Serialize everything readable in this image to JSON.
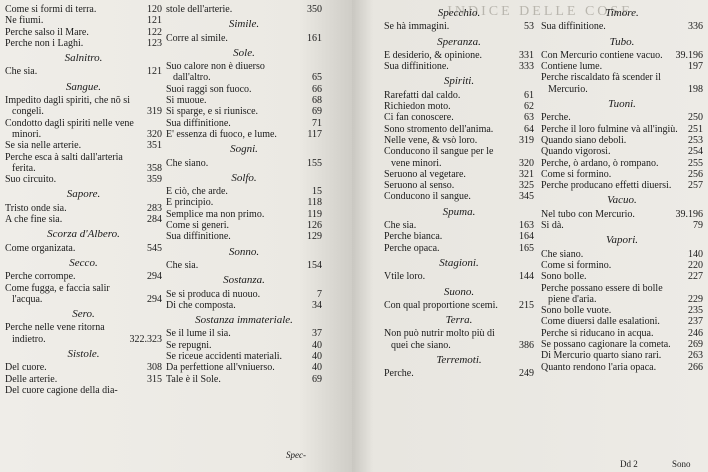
{
  "header": {
    "title": "INDICE DELLE COSE"
  },
  "columns": [
    {
      "items": [
        {
          "text": "Come si formi di terra.",
          "page": "120"
        },
        {
          "text": "Ne fiumi.",
          "page": "121"
        },
        {
          "text": "Perche salso il Mare.",
          "page": "122"
        },
        {
          "text": "Perche non i Laghi.",
          "page": "123"
        },
        {
          "heading": "Salnitro."
        },
        {
          "text": "Che sia.",
          "page": "121"
        },
        {
          "heading": "Sangue."
        },
        {
          "text": "Impedito dagli spiriti, che nõ si congeli.",
          "page": "319"
        },
        {
          "text": "Condotto dagli spiriti nelle vene minori.",
          "page": "320"
        },
        {
          "text": "Se sia nelle arterie.",
          "page": "351"
        },
        {
          "text": "Perche esca à salti dall'arteria ferita.",
          "page": "358"
        },
        {
          "text": "Suo circuito.",
          "page": "359"
        },
        {
          "heading": "Sapore."
        },
        {
          "text": "Tristo onde sia.",
          "page": "283"
        },
        {
          "text": "A che fine sia.",
          "page": "284"
        },
        {
          "heading": "Scorza d'Albero."
        },
        {
          "text": "Come organizata.",
          "page": "545"
        },
        {
          "heading": "Secco."
        },
        {
          "text": "Perche corrompe.",
          "page": "294"
        },
        {
          "text": "Come fugga, e faccia salir l'acqua.",
          "page": "294"
        },
        {
          "heading": "Sero."
        },
        {
          "text": "Perche nelle vene ritorna indietro.",
          "page": "322.323"
        },
        {
          "heading": "Sistole."
        },
        {
          "text": "Del cuore.",
          "page": "308"
        },
        {
          "text": "Delle arterie.",
          "page": "315"
        },
        {
          "text": "Del cuore cagione della dia-",
          "page": ""
        }
      ]
    },
    {
      "items": [
        {
          "text": "stole dell'arterie.",
          "page": "350"
        },
        {
          "heading": "Simile."
        },
        {
          "text": "Corre al simile.",
          "page": "161"
        },
        {
          "heading": "Sole."
        },
        {
          "text": "Suo calore non è diuerso dall'altro.",
          "page": "65"
        },
        {
          "text": "Suoi raggi son fuoco.",
          "page": "66"
        },
        {
          "text": "Si muoue.",
          "page": "68"
        },
        {
          "text": "Si sparge, e si riunisce.",
          "page": "69"
        },
        {
          "text": "Sua diffinitione.",
          "page": "71"
        },
        {
          "text": "E' essenza di fuoco, e lume.",
          "page": "117"
        },
        {
          "heading": "Sogni."
        },
        {
          "text": "Che siano.",
          "page": "155"
        },
        {
          "heading": "Solfo."
        },
        {
          "text": "E ciò, che arde.",
          "page": "15"
        },
        {
          "text": "E principio.",
          "page": "118"
        },
        {
          "text": "Semplice ma non primo.",
          "page": "119"
        },
        {
          "text": "Come si generi.",
          "page": "126"
        },
        {
          "text": "Sua diffinitione.",
          "page": "129"
        },
        {
          "heading": "Sonno."
        },
        {
          "text": "Che sia.",
          "page": "154"
        },
        {
          "heading": "Sostanza."
        },
        {
          "text": "Se si produca di nuouo.",
          "page": "7"
        },
        {
          "text": "Di che composta.",
          "page": "34"
        },
        {
          "heading": "Sostanza immateriale."
        },
        {
          "text": "Se il lume il sia.",
          "page": "37"
        },
        {
          "text": "Se repugni.",
          "page": "40"
        },
        {
          "text": "Se riceue accidenti materiali.",
          "page": "40"
        },
        {
          "text": "Da perfettione all'vniuerso.",
          "page": "40"
        },
        {
          "text": "Tale è il Sole.",
          "page": "69"
        }
      ],
      "catchword": "Spec-"
    },
    {
      "items": [
        {
          "heading": "Specchio."
        },
        {
          "text": "Se hà immagini.",
          "page": "53"
        },
        {
          "heading": "Speranza."
        },
        {
          "text": "E desiderio, & opinione.",
          "page": "331"
        },
        {
          "text": "Sua diffinitione.",
          "page": "333"
        },
        {
          "heading": "Spiriti."
        },
        {
          "text": "Rarefatti dal caldo.",
          "page": "61"
        },
        {
          "text": "Richiedon moto.",
          "page": "62"
        },
        {
          "text": "Ci fan conoscere.",
          "page": "63"
        },
        {
          "text": "Sono stromento dell'anima.",
          "page": "64"
        },
        {
          "text": "Nelle vene, & vsò loro.",
          "page": "319"
        },
        {
          "text": "Conducono il sangue per le vene minori.",
          "page": "320"
        },
        {
          "text": "Seruono al vegetare.",
          "page": "321"
        },
        {
          "text": "Seruono al senso.",
          "page": "325"
        },
        {
          "text": "Conducono il sangue.",
          "page": "345"
        },
        {
          "heading": "Spuma."
        },
        {
          "text": "Che sia.",
          "page": "163"
        },
        {
          "text": "Perche bianca.",
          "page": "164"
        },
        {
          "text": "Perche opaca.",
          "page": "165"
        },
        {
          "heading": "Stagioni."
        },
        {
          "text": "Vtile loro.",
          "page": "144"
        },
        {
          "heading": "Suono."
        },
        {
          "text": "Con qual proportione scemi.",
          "page": "215"
        },
        {
          "heading": "Terra."
        },
        {
          "text": "Non può nutrir molto più di quei che siano.",
          "page": "386"
        },
        {
          "heading": "Terremoti."
        },
        {
          "text": "Perche.",
          "page": "249"
        }
      ]
    },
    {
      "items": [
        {
          "heading": "Timore."
        },
        {
          "text": "Sua diffinitione.",
          "page": "336"
        },
        {
          "heading": "Tubo."
        },
        {
          "text": "Con Mercurio contiene vacuo.",
          "page": "39.196"
        },
        {
          "text": "Contiene lume.",
          "page": "197"
        },
        {
          "text": "Perche riscaldato fà scender il Mercurio.",
          "page": "198"
        },
        {
          "heading": "Tuoni."
        },
        {
          "text": "Perche.",
          "page": "250"
        },
        {
          "text": "Perche il loro fulmine và all'ingiù.",
          "page": "251"
        },
        {
          "text": "Quando siano deboli.",
          "page": "253"
        },
        {
          "text": "Quando vigorosi.",
          "page": "254"
        },
        {
          "text": "Perche, ò ardano, ò rompano.",
          "page": "255"
        },
        {
          "text": "Come si formino.",
          "page": "256"
        },
        {
          "text": "Perche producano effetti diuersi.",
          "page": "257"
        },
        {
          "heading": "Vacuo."
        },
        {
          "text": "Nel tubo con Mercurio.",
          "page": "39.196"
        },
        {
          "text": "Si dà.",
          "page": "79"
        },
        {
          "heading": "Vapori."
        },
        {
          "text": "Che siano.",
          "page": "140"
        },
        {
          "text": "Come si formino.",
          "page": "220"
        },
        {
          "text": "Sono bolle.",
          "page": "227"
        },
        {
          "text": "Perche possano essere di bolle piene d'aria.",
          "page": "229"
        },
        {
          "text": "Sono bolle vuote.",
          "page": "235"
        },
        {
          "text": "Come diuersi dalle esalationi.",
          "page": "237"
        },
        {
          "text": "Perche si riducano in acqua.",
          "page": "246"
        },
        {
          "text": "Se possano cagionare la cometa.",
          "page": "269"
        },
        {
          "text": "Di Mercurio quarto siano rari.",
          "page": "263"
        },
        {
          "text": "Quanto rendono l'aria opaca.",
          "page": "266"
        }
      ],
      "signature": "Dd 2",
      "catchword": "Sono"
    }
  ]
}
